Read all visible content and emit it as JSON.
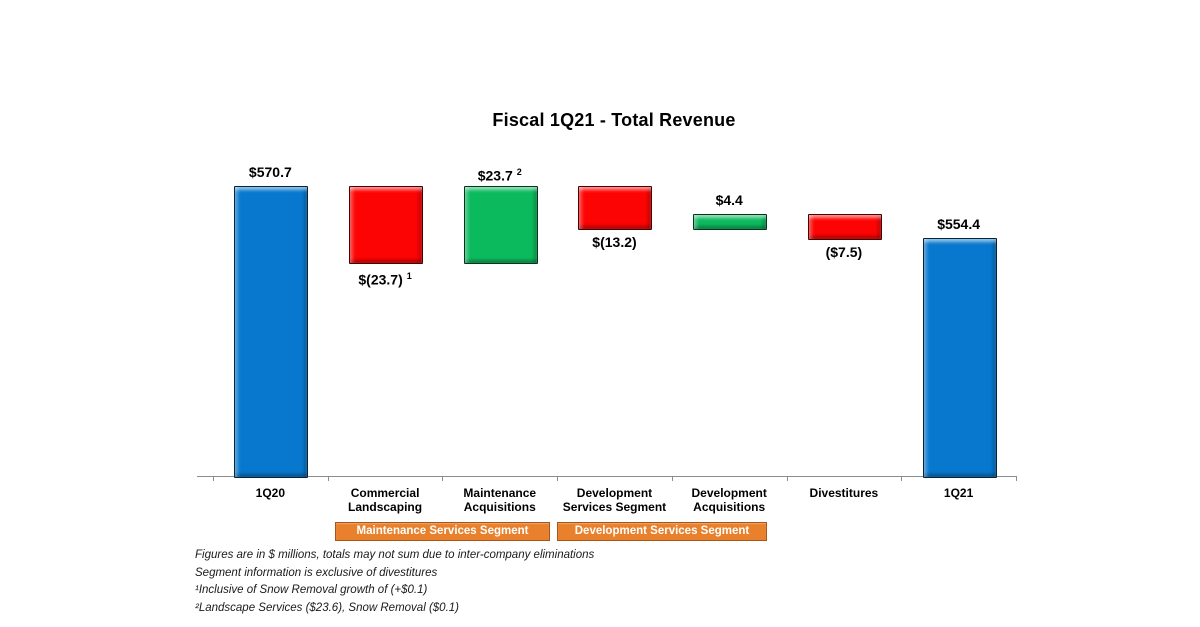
{
  "chart_data": {
    "type": "bar",
    "subtype": "waterfall",
    "title": "Fiscal 1Q21 - Total Revenue",
    "xlabel": "",
    "ylabel": "",
    "unit": "$ millions",
    "ylim": [
      480,
      580
    ],
    "grid": false,
    "legend": "none",
    "categories": [
      "1Q20",
      "Commercial Landscaping",
      "Maintenance Acquisitions",
      "Development Services Segment",
      "Development Acquisitions",
      "Divestitures",
      "1Q21"
    ],
    "values": [
      570.7,
      -23.7,
      23.7,
      -13.2,
      4.4,
      -7.5,
      554.4
    ],
    "bars": [
      {
        "category": "1Q20",
        "lines": [
          "1Q20"
        ],
        "value": 570.7,
        "kind": "total",
        "display": "$570.7",
        "note": "",
        "label_position": "above"
      },
      {
        "category": "Commercial Landscaping",
        "lines": [
          "Commercial",
          "Landscaping"
        ],
        "value": -23.7,
        "kind": "decrease",
        "display": "$(23.7)",
        "note": "1",
        "label_position": "below"
      },
      {
        "category": "Maintenance Acquisitions",
        "lines": [
          "Maintenance",
          "Acquisitions"
        ],
        "value": 23.7,
        "kind": "increase",
        "display": "$23.7",
        "note": "2",
        "label_position": "above"
      },
      {
        "category": "Development Services Segment",
        "lines": [
          "Development",
          "Services Segment"
        ],
        "value": -13.2,
        "kind": "decrease",
        "display": "$(13.2)",
        "note": "",
        "label_position": "below"
      },
      {
        "category": "Development Acquisitions",
        "lines": [
          "Development",
          "Acquisitions"
        ],
        "value": 4.4,
        "kind": "increase",
        "display": "$4.4",
        "note": "",
        "label_position": "above"
      },
      {
        "category": "Divestitures",
        "lines": [
          "Divestitures"
        ],
        "value": -7.5,
        "kind": "decrease",
        "display": "($7.5)",
        "note": "",
        "label_position": "below"
      },
      {
        "category": "1Q21",
        "lines": [
          "1Q21"
        ],
        "value": 554.4,
        "kind": "total",
        "display": "$554.4",
        "note": "",
        "label_position": "above"
      }
    ],
    "segment_banners": [
      {
        "label": "Maintenance Services Segment",
        "from": 1,
        "to": 2
      },
      {
        "label": "Development Services Segment",
        "from": 3,
        "to": 4
      }
    ],
    "colors": {
      "total": "#0878ce",
      "increase": "#0cba5e",
      "decrease": "#fc0404",
      "banner": "#e8802c",
      "banner_border": "#a6561b",
      "axis": "#8c8c8c"
    }
  },
  "footnotes": [
    "Figures are in $ millions, totals may not sum due to inter-company eliminations",
    "Segment information is exclusive of divestitures",
    "¹Inclusive of Snow Removal growth of (+$0.1)",
    "²Landscape Services ($23.6), Snow Removal ($0.1)"
  ]
}
